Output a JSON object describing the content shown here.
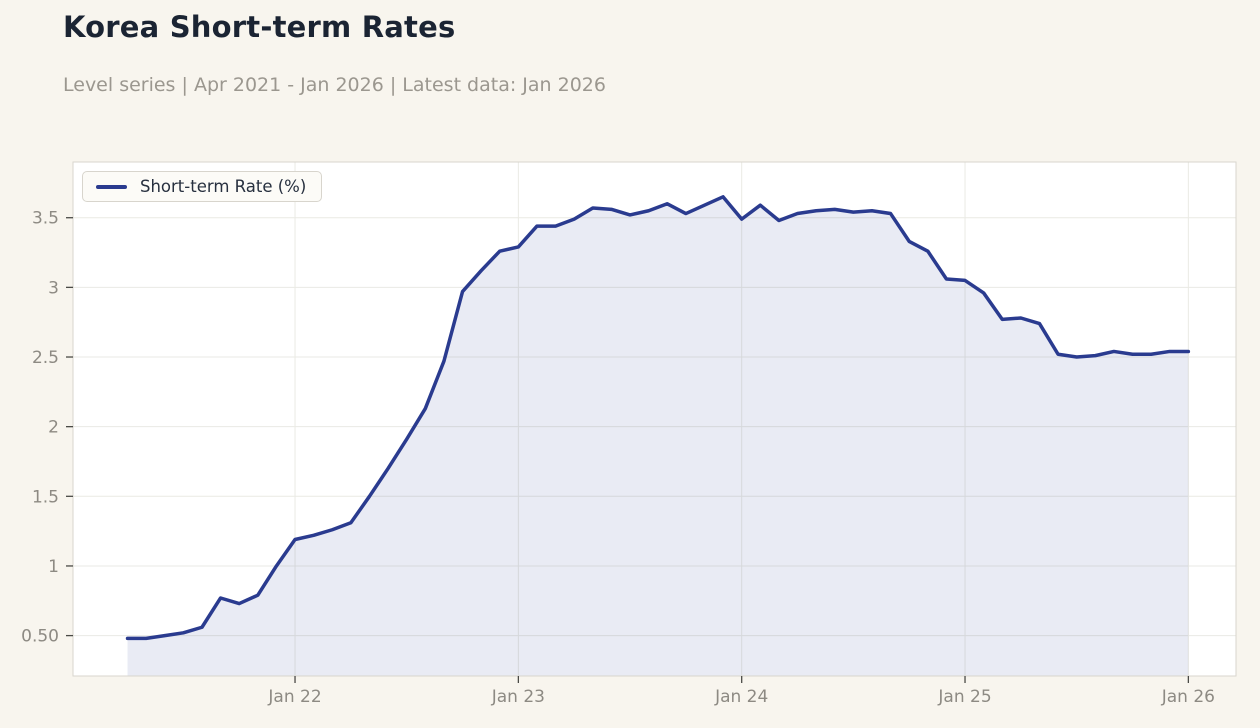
{
  "header": {
    "title": "Korea Short-term Rates",
    "subtitle": "Level series | Apr 2021 - Jan 2026 | Latest data: Jan 2026"
  },
  "legend": {
    "label": "Short-term Rate (%)",
    "position": "upper left"
  },
  "colors": {
    "figure_background": "#f8f5ee",
    "plot_background": "#ffffff",
    "line": "#2a3b8f",
    "area_fill": "rgba(42,59,143,0.10)",
    "grid": "#eaeae4",
    "plot_border": "#d8d5cd",
    "tick_mark": "#4a4a46",
    "tick_label": "#8d8a83",
    "title": "#1b2433",
    "subtitle": "#9b978f"
  },
  "chart_data": {
    "type": "line",
    "title": "Korea Short-term Rates",
    "xlabel": "",
    "ylabel": "",
    "grid": true,
    "legend_position": "upper left",
    "frequency": "monthly",
    "x": [
      "Apr 2021",
      "May 2021",
      "Jun 2021",
      "Jul 2021",
      "Aug 2021",
      "Sep 2021",
      "Oct 2021",
      "Nov 2021",
      "Dec 2021",
      "Jan 2022",
      "Feb 2022",
      "Mar 2022",
      "Apr 2022",
      "May 2022",
      "Jun 2022",
      "Jul 2022",
      "Aug 2022",
      "Sep 2022",
      "Oct 2022",
      "Nov 2022",
      "Dec 2022",
      "Jan 2023",
      "Feb 2023",
      "Mar 2023",
      "Apr 2023",
      "May 2023",
      "Jun 2023",
      "Jul 2023",
      "Aug 2023",
      "Sep 2023",
      "Oct 2023",
      "Nov 2023",
      "Dec 2023",
      "Jan 2024",
      "Feb 2024",
      "Mar 2024",
      "Apr 2024",
      "May 2024",
      "Jun 2024",
      "Jul 2024",
      "Aug 2024",
      "Sep 2024",
      "Oct 2024",
      "Nov 2024",
      "Dec 2024",
      "Jan 2025",
      "Feb 2025",
      "Mar 2025",
      "Apr 2025",
      "May 2025",
      "Jun 2025",
      "Jul 2025",
      "Aug 2025",
      "Sep 2025",
      "Oct 2025",
      "Nov 2025",
      "Dec 2025",
      "Jan 2026"
    ],
    "series": [
      {
        "name": "Short-term Rate (%)",
        "values": [
          0.48,
          0.48,
          0.5,
          0.52,
          0.56,
          0.77,
          0.73,
          0.79,
          1.0,
          1.19,
          1.22,
          1.26,
          1.31,
          1.5,
          1.7,
          1.91,
          2.13,
          2.47,
          2.97,
          3.12,
          3.26,
          3.29,
          3.44,
          3.44,
          3.49,
          3.57,
          3.56,
          3.52,
          3.55,
          3.6,
          3.53,
          3.59,
          3.65,
          3.49,
          3.59,
          3.48,
          3.53,
          3.55,
          3.56,
          3.54,
          3.55,
          3.53,
          3.33,
          3.26,
          3.06,
          3.05,
          2.96,
          2.77,
          2.78,
          2.74,
          2.52,
          2.5,
          2.51,
          2.54,
          2.52,
          2.52,
          2.54,
          2.54
        ]
      }
    ],
    "x_ticks": [
      {
        "label": "Jan 22",
        "index": 9
      },
      {
        "label": "Jan 23",
        "index": 21
      },
      {
        "label": "Jan 24",
        "index": 33
      },
      {
        "label": "Jan 25",
        "index": 45
      },
      {
        "label": "Jan 26",
        "index": 57
      }
    ],
    "y_ticks": [
      {
        "label": "0.50",
        "value": 0.5
      },
      {
        "label": "1",
        "value": 1.0
      },
      {
        "label": "1.5",
        "value": 1.5
      },
      {
        "label": "2",
        "value": 2.0
      },
      {
        "label": "2.5",
        "value": 2.5
      },
      {
        "label": "3",
        "value": 3.0
      },
      {
        "label": "3.5",
        "value": 3.5
      }
    ],
    "ylim": [
      0.21,
      3.9
    ]
  }
}
